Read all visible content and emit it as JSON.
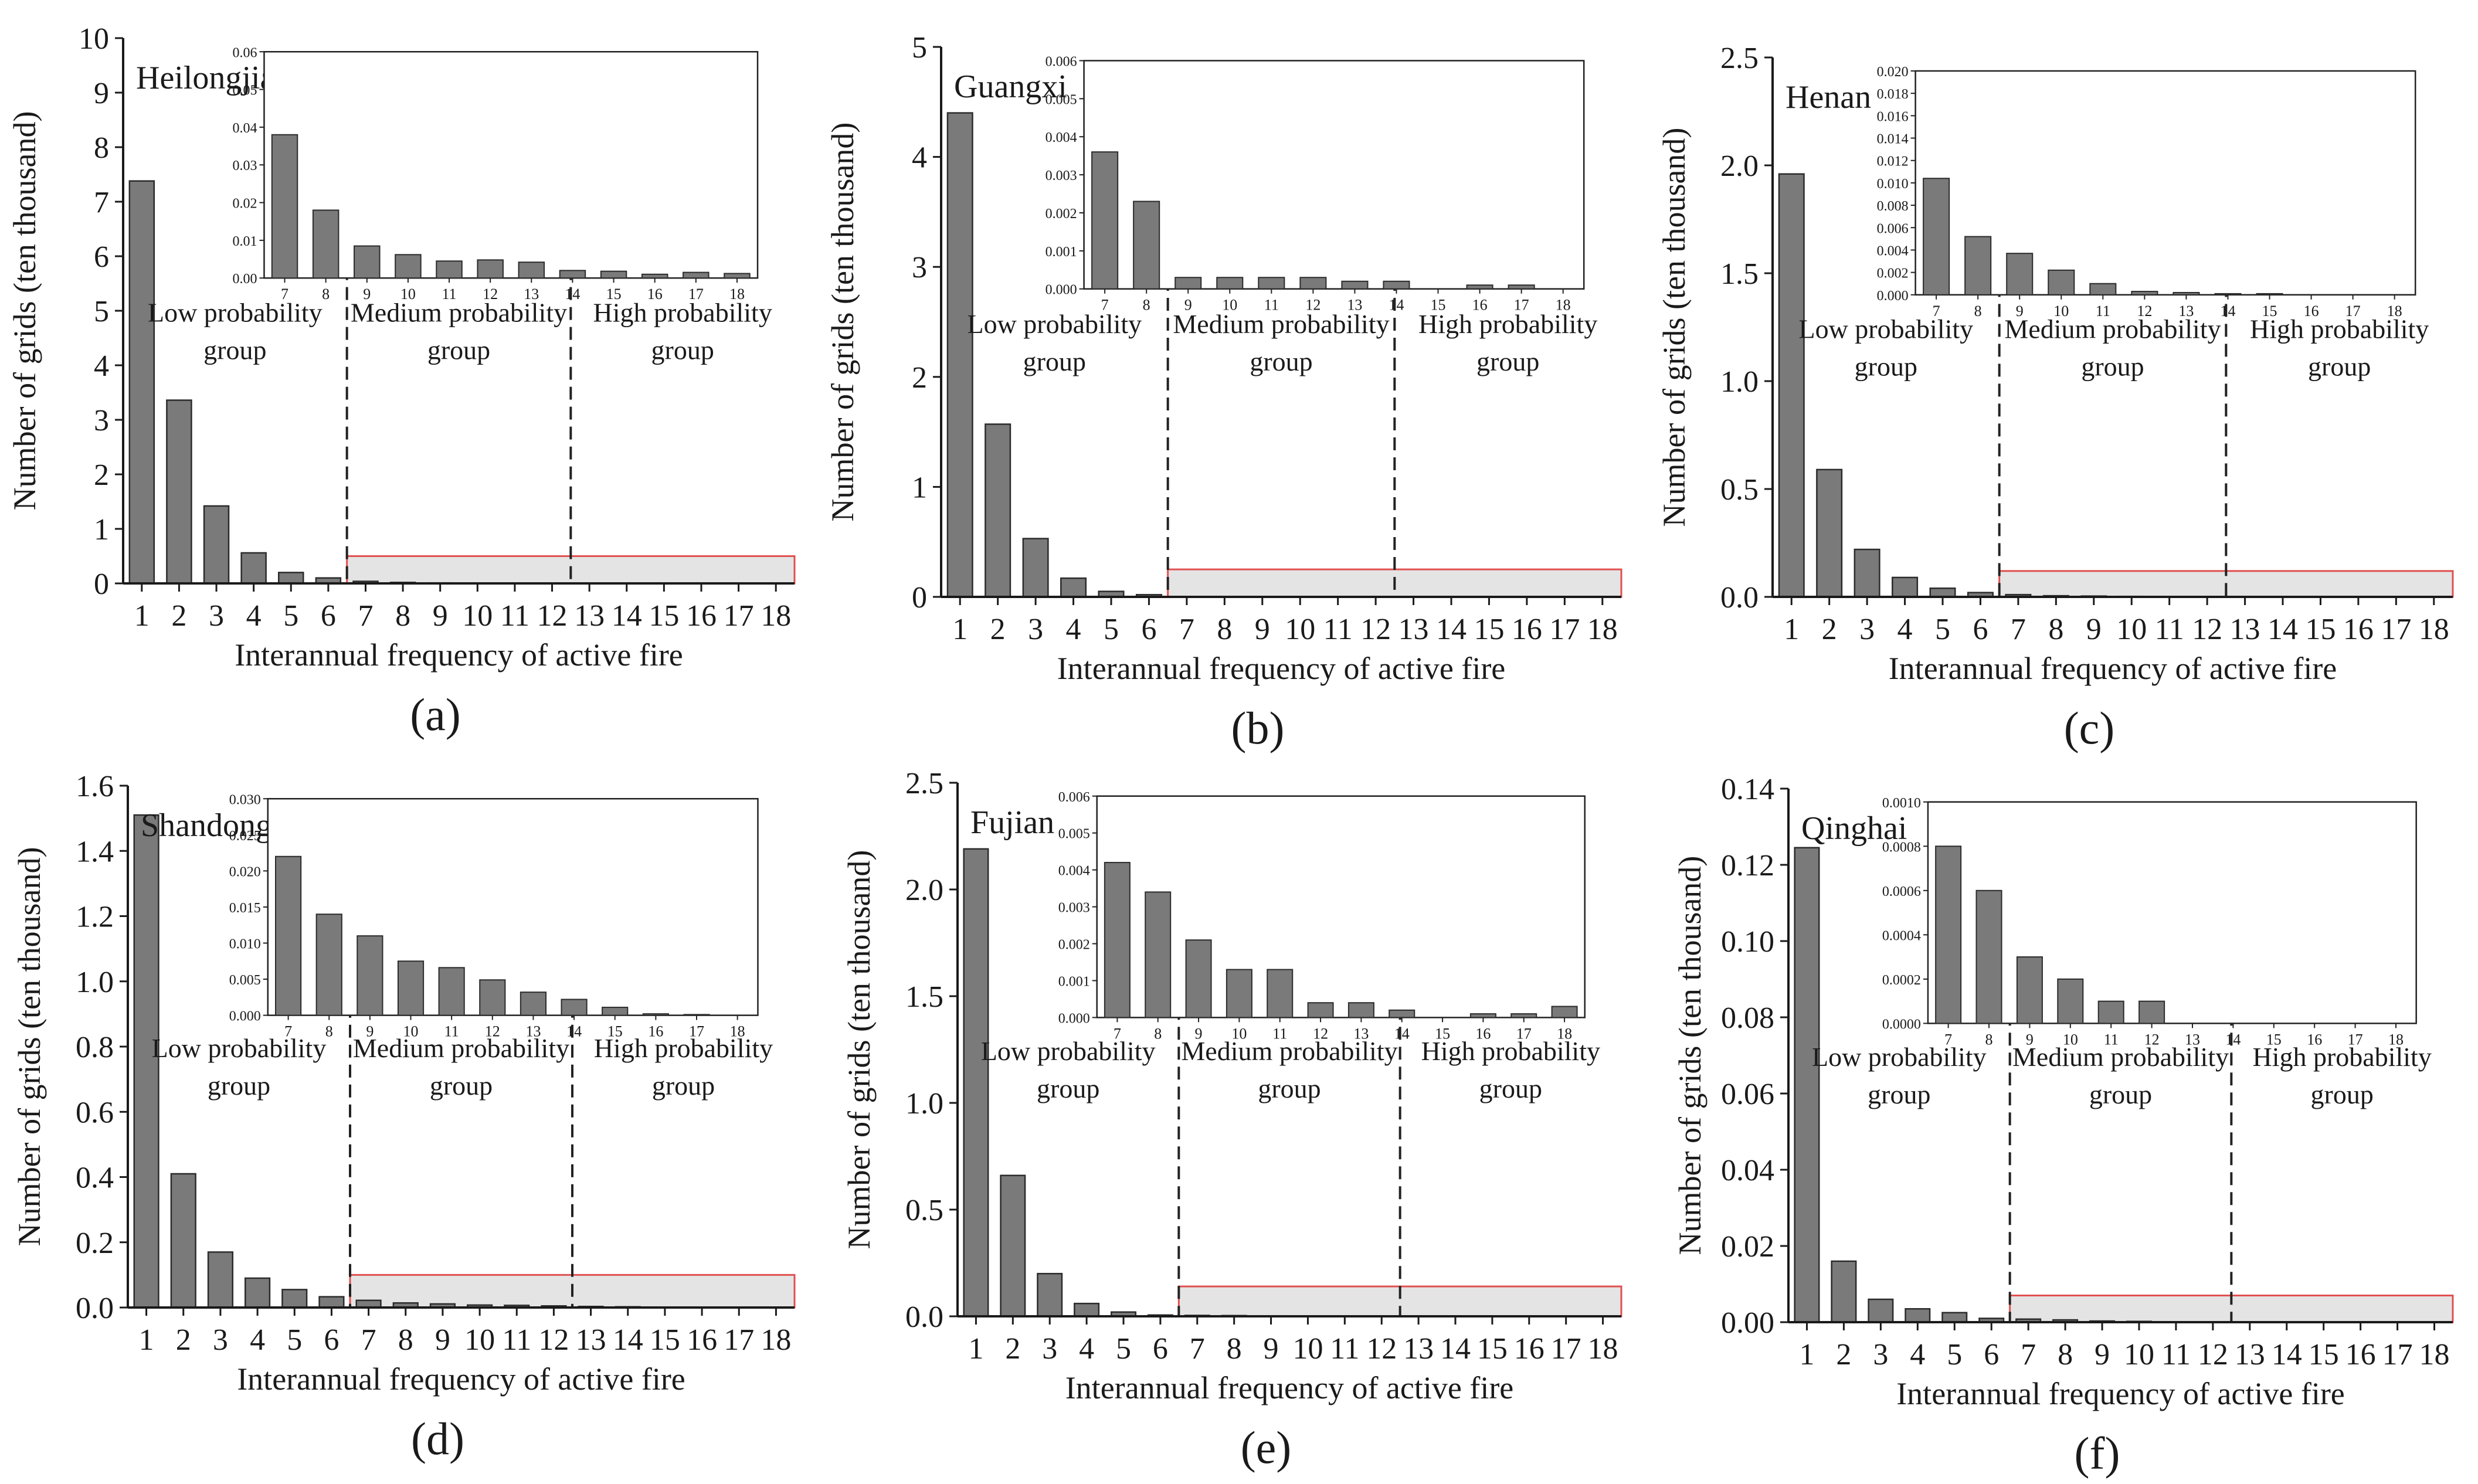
{
  "chart_data": [
    {
      "type": "bar",
      "panel_label": "(a)",
      "province": "Heilongjiang",
      "xlabel": "Interannual frequency of active fire",
      "ylabel": "Number of grids (ten thousand)",
      "categories": [
        "1",
        "2",
        "3",
        "4",
        "5",
        "6",
        "7",
        "8",
        "9",
        "10",
        "11",
        "12",
        "13",
        "14",
        "15",
        "16",
        "17",
        "18"
      ],
      "values": [
        7.38,
        3.36,
        1.42,
        0.56,
        0.2,
        0.1,
        0.038,
        0.018,
        0.0085,
        0.0062,
        0.0045,
        0.0048,
        0.0042,
        0.002,
        0.0018,
        0.001,
        0.0015,
        0.0012
      ],
      "ylim": [
        0,
        10
      ],
      "yticks": [
        "0",
        "1",
        "2",
        "3",
        "4",
        "5",
        "6",
        "7",
        "8",
        "9",
        "10"
      ],
      "groups": [
        {
          "label": "Low probability",
          "label2": "group"
        },
        {
          "label": "Medium probability",
          "label2": "group"
        },
        {
          "label": "High probability",
          "label2": "group"
        }
      ],
      "zoom_box_top": 0.5,
      "inset": {
        "categories": [
          "7",
          "8",
          "9",
          "10",
          "11",
          "12",
          "13",
          "14",
          "15",
          "16",
          "17",
          "18"
        ],
        "ylim": [
          0,
          0.06
        ],
        "yticks": [
          "0.00",
          "0.01",
          "0.02",
          "0.03",
          "0.04",
          "0.05",
          "0.06"
        ]
      }
    },
    {
      "type": "bar",
      "panel_label": "(b)",
      "province": "Guangxi",
      "xlabel": "Interannual frequency of active fire",
      "ylabel": "Number of grids (ten thousand)",
      "categories": [
        "1",
        "2",
        "3",
        "4",
        "5",
        "6",
        "7",
        "8",
        "9",
        "10",
        "11",
        "12",
        "13",
        "14",
        "15",
        "16",
        "17",
        "18"
      ],
      "values": [
        4.4,
        1.57,
        0.53,
        0.17,
        0.05,
        0.02,
        0.0036,
        0.0023,
        0.0003,
        0.0003,
        0.0003,
        0.0003,
        0.0002,
        0.0002,
        0.0,
        0.0001,
        0.0001,
        0.0
      ],
      "ylim": [
        0,
        5
      ],
      "yticks": [
        "0",
        "1",
        "2",
        "3",
        "4",
        "5"
      ],
      "groups": [
        {
          "label": "Low probability",
          "label2": "group"
        },
        {
          "label": "Medium probability",
          "label2": "group"
        },
        {
          "label": "High probability",
          "label2": "group"
        }
      ],
      "zoom_box_top": 0.25,
      "inset": {
        "categories": [
          "7",
          "8",
          "9",
          "10",
          "11",
          "12",
          "13",
          "14",
          "15",
          "16",
          "17",
          "18"
        ],
        "ylim": [
          0,
          0.006
        ],
        "yticks": [
          "0.000",
          "0.001",
          "0.002",
          "0.003",
          "0.004",
          "0.005",
          "0.006"
        ]
      }
    },
    {
      "type": "bar",
      "panel_label": "(c)",
      "province": "Henan",
      "xlabel": "Interannual frequency of active fire",
      "ylabel": "Number of grids (ten thousand)",
      "categories": [
        "1",
        "2",
        "3",
        "4",
        "5",
        "6",
        "7",
        "8",
        "9",
        "10",
        "11",
        "12",
        "13",
        "14",
        "15",
        "16",
        "17",
        "18"
      ],
      "values": [
        1.96,
        0.59,
        0.22,
        0.09,
        0.04,
        0.02,
        0.0104,
        0.0052,
        0.0037,
        0.0022,
        0.001,
        0.0003,
        0.0002,
        0.0001,
        0.0001,
        0.0,
        0.0,
        0.0
      ],
      "ylim": [
        0,
        2.5
      ],
      "yticks": [
        "0.0",
        "0.5",
        "1.0",
        "1.5",
        "2.0",
        "2.5"
      ],
      "groups": [
        {
          "label": "Low probability",
          "label2": "group"
        },
        {
          "label": "Medium probability",
          "label2": "group"
        },
        {
          "label": "High probability",
          "label2": "group"
        }
      ],
      "zoom_box_top": 0.12,
      "inset": {
        "categories": [
          "7",
          "8",
          "9",
          "10",
          "11",
          "12",
          "13",
          "14",
          "15",
          "16",
          "17",
          "18"
        ],
        "ylim": [
          0,
          0.02
        ],
        "yticks": [
          "0.000",
          "0.002",
          "0.004",
          "0.006",
          "0.008",
          "0.010",
          "0.012",
          "0.014",
          "0.016",
          "0.018",
          "0.020"
        ]
      }
    },
    {
      "type": "bar",
      "panel_label": "(d)",
      "province": "Shandong",
      "xlabel": "Interannual frequency of active fire",
      "ylabel": "Number of grids (ten thousand)",
      "categories": [
        "1",
        "2",
        "3",
        "4",
        "5",
        "6",
        "7",
        "8",
        "9",
        "10",
        "11",
        "12",
        "13",
        "14",
        "15",
        "16",
        "17",
        "18"
      ],
      "values": [
        1.51,
        0.41,
        0.17,
        0.09,
        0.055,
        0.033,
        0.022,
        0.014,
        0.011,
        0.0075,
        0.0066,
        0.0049,
        0.0032,
        0.0022,
        0.0011,
        0.0002,
        0.0001,
        0.0
      ],
      "ylim": [
        0,
        1.6
      ],
      "yticks": [
        "0.0",
        "0.2",
        "0.4",
        "0.6",
        "0.8",
        "1.0",
        "1.2",
        "1.4",
        "1.6"
      ],
      "groups": [
        {
          "label": "Low probability",
          "label2": "group"
        },
        {
          "label": "Medium probability",
          "label2": "group"
        },
        {
          "label": "High probability",
          "label2": "group"
        }
      ],
      "zoom_box_top": 0.1,
      "inset": {
        "categories": [
          "7",
          "8",
          "9",
          "10",
          "11",
          "12",
          "13",
          "14",
          "15",
          "16",
          "17",
          "18"
        ],
        "ylim": [
          0,
          0.03
        ],
        "yticks": [
          "0.000",
          "0.005",
          "0.010",
          "0.015",
          "0.020",
          "0.025",
          "0.030"
        ]
      }
    },
    {
      "type": "bar",
      "panel_label": "(e)",
      "province": "Fujian",
      "xlabel": "Interannual frequency of active fire",
      "ylabel": "Number of grids (ten thousand)",
      "categories": [
        "1",
        "2",
        "3",
        "4",
        "5",
        "6",
        "7",
        "8",
        "9",
        "10",
        "11",
        "12",
        "13",
        "14",
        "15",
        "16",
        "17",
        "18"
      ],
      "values": [
        2.19,
        0.66,
        0.2,
        0.06,
        0.02,
        0.006,
        0.0042,
        0.0034,
        0.0021,
        0.0013,
        0.0013,
        0.0004,
        0.0004,
        0.0002,
        0.0,
        0.0001,
        0.0001,
        0.0003
      ],
      "ylim": [
        0,
        2.5
      ],
      "yticks": [
        "0.0",
        "0.5",
        "1.0",
        "1.5",
        "2.0",
        "2.5"
      ],
      "groups": [
        {
          "label": "Low probability",
          "label2": "group"
        },
        {
          "label": "Medium probability",
          "label2": "group"
        },
        {
          "label": "High probability",
          "label2": "group"
        }
      ],
      "zoom_box_top": 0.14,
      "inset": {
        "categories": [
          "7",
          "8",
          "9",
          "10",
          "11",
          "12",
          "13",
          "14",
          "15",
          "16",
          "17",
          "18"
        ],
        "ylim": [
          0,
          0.006
        ],
        "yticks": [
          "0.000",
          "0.001",
          "0.002",
          "0.003",
          "0.004",
          "0.005",
          "0.006"
        ]
      }
    },
    {
      "type": "bar",
      "panel_label": "(f)",
      "province": "Qinghai",
      "xlabel": "Interannual frequency of active fire",
      "ylabel": "Number of grids (ten thousand)",
      "categories": [
        "1",
        "2",
        "3",
        "4",
        "5",
        "6",
        "7",
        "8",
        "9",
        "10",
        "11",
        "12",
        "13",
        "14",
        "15",
        "16",
        "17",
        "18"
      ],
      "values": [
        0.1245,
        0.016,
        0.006,
        0.0035,
        0.0025,
        0.001,
        0.0008,
        0.0006,
        0.0003,
        0.0002,
        0.0001,
        0.0001,
        0.0,
        0.0,
        0.0,
        0.0,
        0.0,
        0.0
      ],
      "ylim": [
        0,
        0.14
      ],
      "yticks": [
        "0.00",
        "0.02",
        "0.04",
        "0.06",
        "0.08",
        "0.10",
        "0.12",
        "0.14"
      ],
      "groups": [
        {
          "label": "Low probability",
          "label2": "group"
        },
        {
          "label": "Medium probability",
          "label2": "group"
        },
        {
          "label": "High probability",
          "label2": "group"
        }
      ],
      "zoom_box_top": 0.007,
      "inset": {
        "categories": [
          "7",
          "8",
          "9",
          "10",
          "11",
          "12",
          "13",
          "14",
          "15",
          "16",
          "17",
          "18"
        ],
        "ylim": [
          0,
          0.001
        ],
        "yticks": [
          "0.0000",
          "0.0002",
          "0.0004",
          "0.0006",
          "0.0008",
          "0.0010"
        ]
      }
    }
  ],
  "colors": {
    "bar_fill": "#7a7a7a",
    "bar_stroke": "#2b2b2b",
    "axis": "#1a1a1a",
    "zoom_fill": "#e4e4e4",
    "zoom_stroke": "#e05050"
  }
}
